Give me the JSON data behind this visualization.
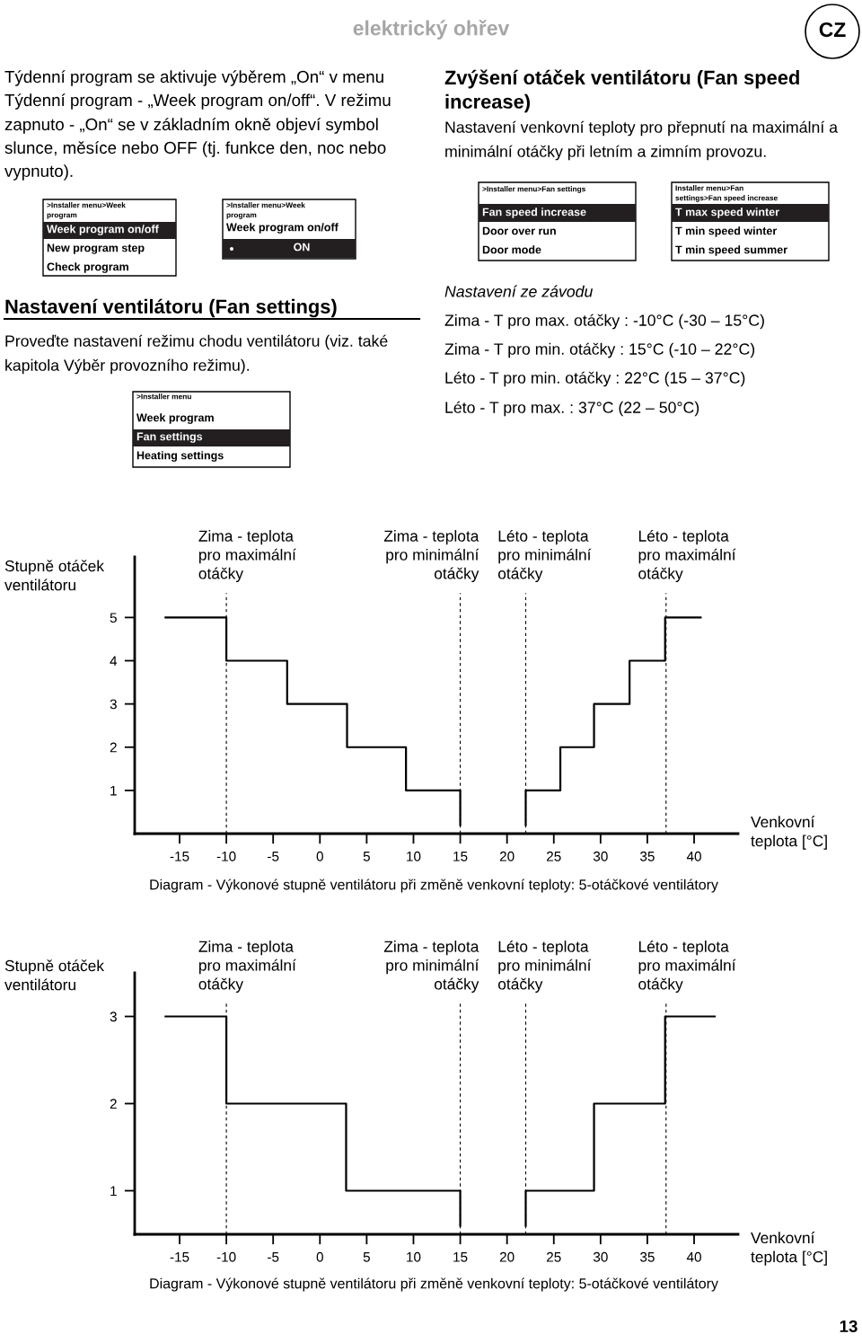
{
  "chart_data": [
    {
      "type": "other",
      "annotations": [
        "elektrický ohřev",
        "CZ",
        "Týdenní program se aktivuje výběrem „On“ v menu",
        "Týdenní program - „Week program on/off“. V režimu",
        "zapnuto - „On“ se v základním okně objeví symbol",
        "slunce, měsíce nebo OFF (tj. funkce den, noc nebo",
        "vypnuto).",
        ">Installer menu>Week",
        "program",
        "Week program on/off",
        "New program step",
        "Check program",
        ">Installer menu>Week",
        "program",
        "Week program on/off",
        "ON",
        "Nastavení ventilátoru (Fan settings)",
        "Proveďte nastavení režimu chodu ventilátoru (viz. také",
        "kapitola Výběr provozního režimu).",
        ">Installer menu",
        "Week program",
        "Fan settings",
        "Heating settings",
        "Zvýšení otáček ventilátoru (Fan speed",
        "increase)",
        "Nastavení venkovní teploty pro přepnutí na maximální a",
        "minimální otáčky při letním a zimním provozu.",
        ">Installer menu>Fan settings",
        "Fan speed increase",
        "Door over run",
        "Door mode",
        "Installer menu>Fan",
        "settings>Fan speed increase",
        "T max speed winter",
        "T min speed winter",
        "T min speed summer",
        "Nastavení ze závodu",
        "Zima - T pro max. otáčky : -10°C (-30 – 15°C)",
        "Zima - T pro min. otáčky : 15°C (-10 – 22°C)",
        "Léto - T pro min. otáčky : 22°C (15 – 37°C)",
        "Léto - T pro max. : 37°C (22 – 50°C)",
        "13"
      ]
    },
    {
      "type": "step",
      "ylabel": "Stupně otáček\nventilátoru",
      "xlabel": "Venkovní\nteplota [°C]",
      "series": [
        {
          "color": "#000000",
          "x": [
            -16.5,
            -10,
            -3.5,
            2.9,
            9.2,
            15
          ],
          "values": [
            5,
            4,
            3,
            2,
            1,
            0.2
          ]
        },
        {
          "color": "#000000",
          "x": [
            22,
            22,
            25.7,
            29.3,
            33.1,
            36.9,
            40.7
          ],
          "values": [
            0.2,
            1,
            2,
            3,
            4,
            5,
            5
          ]
        }
      ],
      "xlim": [
        -19.8,
        44.7
      ],
      "ylim": [
        0,
        6.4
      ],
      "xticks": [
        -15,
        -10,
        -5,
        0,
        5,
        10,
        15,
        20,
        25,
        30,
        35,
        40
      ],
      "yticks": [
        1,
        2,
        3,
        4,
        5
      ],
      "ref_lines": [
        {
          "axis": "x",
          "value": -10,
          "label": "Zima - teplota\npro maximální\notáčky",
          "line_style": "dashed",
          "color": "#000000"
        },
        {
          "axis": "x",
          "value": 15,
          "label": "Zima - teplota\npro minimální\notáčky",
          "line_style": "dashed",
          "color": "#000000"
        },
        {
          "axis": "x",
          "value": 22,
          "label": "Léto - teplota\npro minimální\notáčky",
          "line_style": "dashed",
          "color": "#000000"
        },
        {
          "axis": "x",
          "value": 37,
          "label": "Léto - teplota\npro maximální\notáčky",
          "line_style": "dashed",
          "color": "#000000"
        }
      ],
      "annotations": [
        "Diagram - Výkonové stupně ventilátoru při změně venkovní teploty: 5-otáčkové ventilátory"
      ]
    },
    {
      "type": "step",
      "ylabel": "Stupně otáček\nventilátoru",
      "xlabel": "Venkovní\nteplota [°C]",
      "series": [
        {
          "color": "#000000",
          "x": [
            -16.5,
            -10,
            2.8,
            15
          ],
          "values": [
            3,
            2,
            1,
            0.6
          ]
        },
        {
          "color": "#000000",
          "x": [
            22,
            22,
            29.3,
            36.9,
            42.2
          ],
          "values": [
            0.6,
            1,
            2,
            3,
            3
          ]
        }
      ],
      "xlim": [
        -19.8,
        44.7
      ],
      "ylim": [
        0.5,
        3.5
      ],
      "xticks": [
        -15,
        -10,
        -5,
        0,
        5,
        10,
        15,
        20,
        25,
        30,
        35,
        40
      ],
      "yticks": [
        1,
        2,
        3
      ],
      "ref_lines": [
        {
          "axis": "x",
          "value": -10,
          "label": "Zima - teplota\npro maximální\notáčky",
          "line_style": "dashed",
          "color": "#000000"
        },
        {
          "axis": "x",
          "value": 15,
          "label": "Zima - teplota\npro minimální\notáčky",
          "line_style": "dashed",
          "color": "#000000"
        },
        {
          "axis": "x",
          "value": 22,
          "label": "Léto - teplota\npro minimální\notáčky",
          "line_style": "dashed",
          "color": "#000000"
        },
        {
          "axis": "x",
          "value": 37,
          "label": "Léto - teplota\npro maximální\notáčky",
          "line_style": "dashed",
          "color": "#000000"
        }
      ],
      "annotations": [
        "Diagram - Výkonové stupně ventilátoru při změně venkovní teploty: 5-otáčkové ventilátory"
      ]
    }
  ]
}
